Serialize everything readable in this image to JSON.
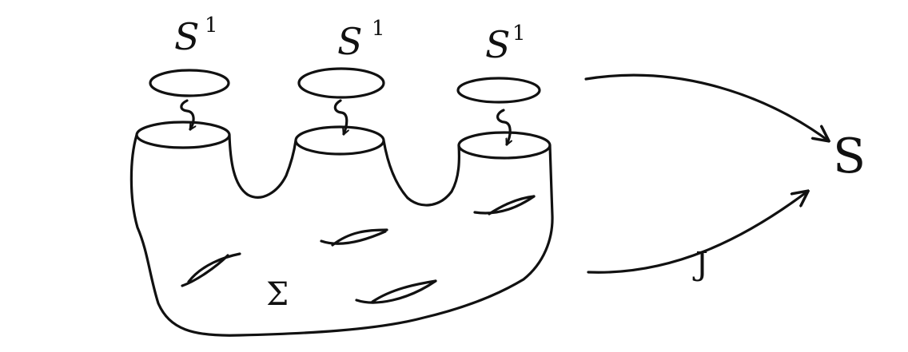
{
  "diagram": {
    "circle_labels": [
      {
        "base": "S",
        "sup": "1"
      },
      {
        "base": "S",
        "sup": "1"
      },
      {
        "base": "S",
        "sup": "1"
      }
    ],
    "surface_label": "Σ",
    "target_label": "S",
    "map_label": "J"
  }
}
